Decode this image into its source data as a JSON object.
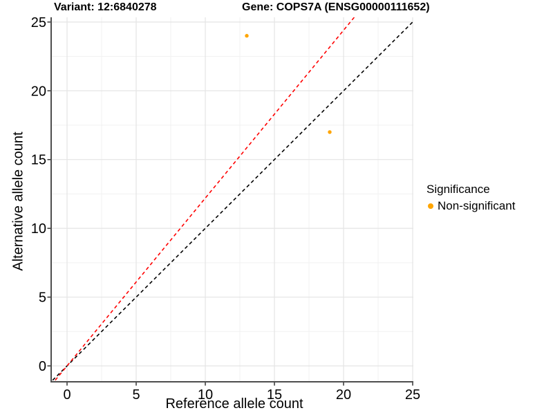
{
  "chart_data": {
    "type": "scatter",
    "title_left": "Variant: 12:6840278",
    "title_right": "Gene: COPS7A (ENSG00000111652)",
    "xlabel": "Reference allele count",
    "ylabel": "Alternative allele count",
    "xlim": [
      -1.15,
      25.05
    ],
    "ylim": [
      -1.15,
      25.2
    ],
    "xticks": [
      0,
      5,
      10,
      15,
      20,
      25
    ],
    "yticks": [
      0,
      5,
      10,
      15,
      20,
      25
    ],
    "grid": "major+minor",
    "legend_position": "right",
    "points": [
      {
        "x": 13,
        "y": 24,
        "series": "Non-significant"
      },
      {
        "x": 19,
        "y": 17,
        "series": "Non-significant"
      }
    ],
    "ablines": [
      {
        "name": "identity-line",
        "slope": 1,
        "intercept": 0,
        "color": "#000000",
        "style": "dashed"
      },
      {
        "name": "expected-ratio-line",
        "slope": 1.22,
        "intercept": 0,
        "color": "#FF0000",
        "style": "dashed"
      }
    ],
    "legend": {
      "title": "Significance",
      "items": [
        {
          "label": "Non-significant",
          "color": "#FFA500"
        }
      ]
    },
    "colors": {
      "point": "#FFA500",
      "grid_major": "#E4E4E4",
      "grid_minor": "#F1F1F1",
      "axis_line": "#4D4D4D",
      "tick": "#333333",
      "text": "#000000",
      "background": "#FFFFFF"
    }
  }
}
